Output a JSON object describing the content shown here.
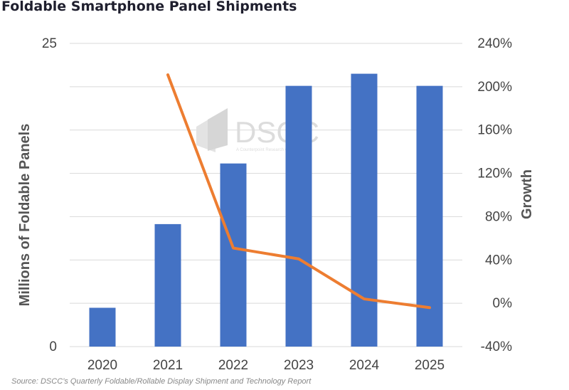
{
  "title": "Foldable Smartphone Panel Shipments",
  "source": "Source: DSCC’s Quarterly Foldable/Rollable Display Shipment and Technology Report",
  "watermark": {
    "brand": "DSCC",
    "tagline": "A Counterpoint Research Company"
  },
  "colors": {
    "bars": "#4472c4",
    "line": "#ed7d31",
    "grid": "#d9d9d9"
  },
  "chart_data": {
    "type": "bar",
    "categories": [
      "2020",
      "2021",
      "2022",
      "2023",
      "2024",
      "2025"
    ],
    "series": [
      {
        "type": "bar",
        "axis": "left",
        "values": [
          3.2,
          10.1,
          15.1,
          21.5,
          22.5,
          21.5
        ]
      },
      {
        "type": "line",
        "axis": "right",
        "values": [
          null,
          211,
          51,
          41,
          4,
          -4
        ]
      }
    ],
    "ylabel": "Millions of Foldable Panels",
    "y2label": "Growth",
    "ylim": [
      0,
      25
    ],
    "y_ticks": [
      "0",
      "25"
    ],
    "y2lim": [
      -40,
      240
    ],
    "y2_ticks": [
      "240%",
      "200%",
      "160%",
      "120%",
      "80%",
      "40%",
      "0%",
      "-40%"
    ],
    "grid": true
  }
}
